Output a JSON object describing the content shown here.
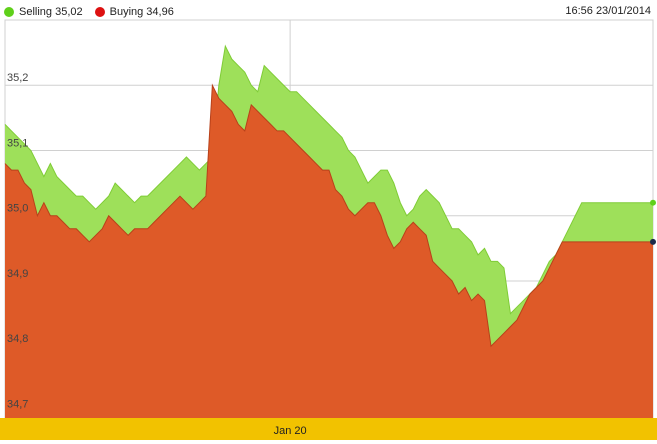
{
  "legend": {
    "selling_label": "Selling 35,02",
    "buying_label": "Buying 34,96"
  },
  "timestamp": "16:56 23/01/2014",
  "colors": {
    "selling": "#9ee05a",
    "selling_dot": "#5fd01a",
    "buying": "#de5a28",
    "buying_dot": "#dd1111",
    "axis_band": "#f2c200",
    "grid": "#d0d0d0"
  },
  "chart_data": {
    "type": "area",
    "title": "",
    "xlabel": "",
    "ylabel": "",
    "ylim": [
      34.69,
      35.3
    ],
    "y_ticks": [
      {
        "value": 35.2,
        "label": "35,2"
      },
      {
        "value": 35.1,
        "label": "35,1"
      },
      {
        "value": 35.0,
        "label": "35,0"
      },
      {
        "value": 34.9,
        "label": "34,9"
      },
      {
        "value": 34.8,
        "label": "34,8"
      },
      {
        "value": 34.7,
        "label": "34,7"
      }
    ],
    "x_ticks": [
      {
        "index": 44,
        "label": "Jan 20"
      }
    ],
    "x": [
      0,
      1,
      2,
      3,
      4,
      5,
      6,
      7,
      8,
      9,
      10,
      11,
      12,
      13,
      14,
      15,
      16,
      17,
      18,
      19,
      20,
      21,
      22,
      23,
      24,
      25,
      26,
      27,
      28,
      29,
      30,
      31,
      32,
      33,
      34,
      35,
      36,
      37,
      38,
      39,
      40,
      41,
      42,
      43,
      44,
      45,
      46,
      47,
      48,
      49,
      50,
      51,
      52,
      53,
      54,
      55,
      56,
      57,
      58,
      59,
      60,
      61,
      62,
      63,
      64,
      65,
      66,
      67,
      68,
      69,
      70,
      71,
      72,
      73,
      74,
      75,
      76,
      77,
      78,
      79,
      80,
      81,
      82,
      83,
      84,
      85,
      86,
      87,
      88,
      89,
      90,
      91,
      92,
      93,
      94,
      95,
      96,
      97,
      98,
      99,
      100
    ],
    "series": [
      {
        "name": "Selling",
        "values": [
          35.14,
          35.13,
          35.12,
          35.11,
          35.1,
          35.08,
          35.06,
          35.08,
          35.06,
          35.05,
          35.04,
          35.03,
          35.03,
          35.02,
          35.01,
          35.02,
          35.03,
          35.05,
          35.04,
          35.03,
          35.02,
          35.03,
          35.03,
          35.04,
          35.05,
          35.06,
          35.07,
          35.08,
          35.09,
          35.08,
          35.07,
          35.08,
          35.09,
          35.2,
          35.26,
          35.24,
          35.23,
          35.22,
          35.2,
          35.19,
          35.23,
          35.22,
          35.21,
          35.2,
          35.19,
          35.19,
          35.18,
          35.17,
          35.16,
          35.15,
          35.14,
          35.13,
          35.12,
          35.1,
          35.09,
          35.07,
          35.05,
          35.06,
          35.07,
          35.07,
          35.05,
          35.02,
          35.0,
          35.01,
          35.03,
          35.04,
          35.03,
          35.02,
          35.0,
          34.98,
          34.98,
          34.97,
          34.96,
          34.94,
          34.95,
          34.93,
          34.93,
          34.92,
          34.85,
          34.86,
          34.87,
          34.88,
          34.89,
          34.91,
          34.93,
          34.94,
          34.96,
          34.98,
          35.0,
          35.02,
          35.02,
          35.02,
          35.02,
          35.02,
          35.02,
          35.02,
          35.02,
          35.02,
          35.02,
          35.02,
          35.02
        ]
      },
      {
        "name": "Buying",
        "values": [
          35.08,
          35.07,
          35.07,
          35.05,
          35.04,
          35.0,
          35.02,
          35.0,
          35.0,
          34.99,
          34.98,
          34.98,
          34.97,
          34.96,
          34.97,
          34.98,
          35.0,
          34.99,
          34.98,
          34.97,
          34.98,
          34.98,
          34.98,
          34.99,
          35.0,
          35.01,
          35.02,
          35.03,
          35.02,
          35.01,
          35.02,
          35.03,
          35.2,
          35.18,
          35.17,
          35.16,
          35.14,
          35.13,
          35.17,
          35.16,
          35.15,
          35.14,
          35.13,
          35.13,
          35.12,
          35.11,
          35.1,
          35.09,
          35.08,
          35.07,
          35.07,
          35.04,
          35.03,
          35.01,
          35.0,
          35.01,
          35.02,
          35.02,
          35.0,
          34.97,
          34.95,
          34.96,
          34.98,
          34.99,
          34.98,
          34.97,
          34.93,
          34.92,
          34.91,
          34.9,
          34.88,
          34.89,
          34.87,
          34.88,
          34.87,
          34.8,
          34.81,
          34.82,
          34.83,
          34.84,
          34.86,
          34.88,
          34.89,
          34.9,
          34.92,
          34.94,
          34.96,
          34.96,
          34.96,
          34.96,
          34.96,
          34.96,
          34.96,
          34.96,
          34.96,
          34.96,
          34.96,
          34.96,
          34.96,
          34.96,
          34.96
        ]
      }
    ],
    "grid": true,
    "legend_position": "top-left"
  }
}
